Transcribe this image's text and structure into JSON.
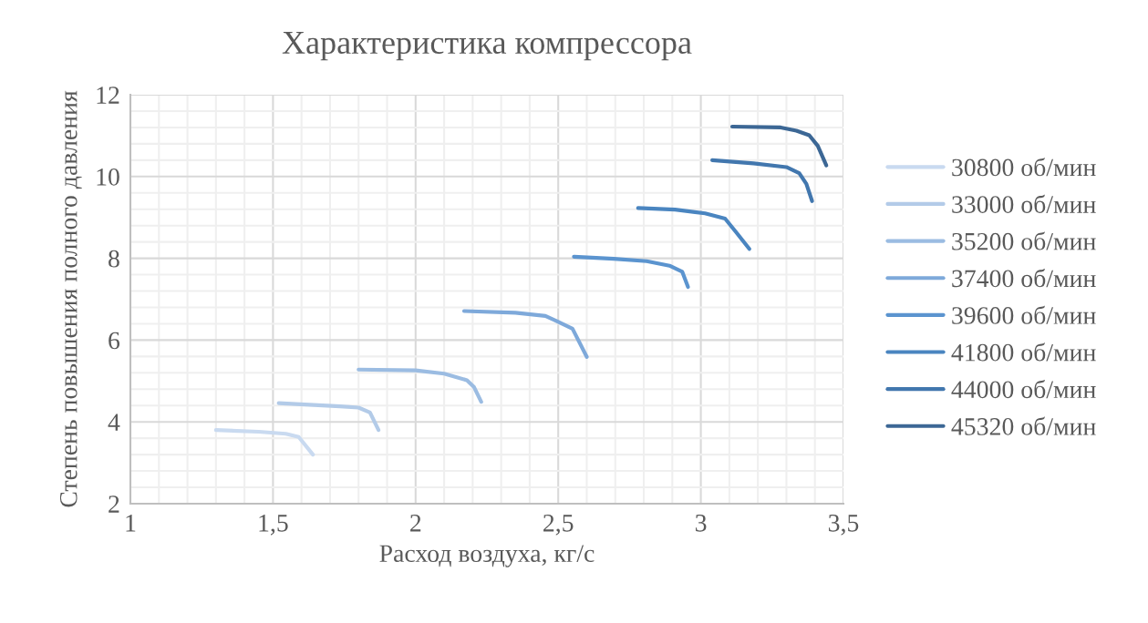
{
  "chart_data": {
    "type": "line",
    "title": "Характеристика компрессора",
    "xlabel": "Расход воздуха, кг/с",
    "ylabel": "Степень повышения полного давления",
    "xlim": [
      1,
      3.5
    ],
    "xticks": [
      1,
      {
        "value": 1.5,
        "label": "1,5"
      },
      2,
      {
        "value": 2.5,
        "label": "2,5"
      },
      3,
      {
        "value": 3.5,
        "label": "3,5"
      }
    ],
    "ylim": [
      2,
      12
    ],
    "yticks": [
      2,
      4,
      6,
      8,
      10,
      12
    ],
    "grid": true,
    "legend": "right",
    "marker": "none",
    "line_style": "solid",
    "series": [
      {
        "name": "30800 об/мин",
        "color": "#c9daf0",
        "x": [
          1.3,
          1.45,
          1.545,
          1.59,
          1.64
        ],
        "values": [
          3.8,
          3.76,
          3.71,
          3.63,
          3.2
        ]
      },
      {
        "name": "33000 об/мин",
        "color": "#b3cbe8",
        "x": [
          1.52,
          1.735,
          1.8,
          1.84,
          1.87
        ],
        "values": [
          4.46,
          4.38,
          4.35,
          4.23,
          3.8
        ]
      },
      {
        "name": "35200 об/мин",
        "color": "#9bbce2",
        "x": [
          1.8,
          2.0,
          2.1,
          2.18,
          2.205,
          2.23
        ],
        "values": [
          5.28,
          5.26,
          5.18,
          5.02,
          4.85,
          4.49
        ]
      },
      {
        "name": "37400 об/мин",
        "color": "#7ea9da",
        "x": [
          2.17,
          2.35,
          2.455,
          2.49,
          2.55,
          2.6
        ],
        "values": [
          6.71,
          6.67,
          6.59,
          6.48,
          6.28,
          5.59
        ]
      },
      {
        "name": "39600 об/мин",
        "color": "#5b94cf",
        "x": [
          2.555,
          2.695,
          2.81,
          2.89,
          2.935,
          2.955
        ],
        "values": [
          8.04,
          7.99,
          7.93,
          7.82,
          7.67,
          7.3
        ]
      },
      {
        "name": "41800 об/мин",
        "color": "#4a85c0",
        "x": [
          2.78,
          2.91,
          3.015,
          3.085,
          3.12,
          3.17
        ],
        "values": [
          9.23,
          9.19,
          9.1,
          8.97,
          8.67,
          8.23
        ]
      },
      {
        "name": "44000 об/мин",
        "color": "#4277ae",
        "x": [
          3.04,
          3.185,
          3.3,
          3.345,
          3.37,
          3.39
        ],
        "values": [
          10.4,
          10.32,
          10.23,
          10.08,
          9.82,
          9.4
        ]
      },
      {
        "name": "45320 об/мин",
        "color": "#3c6795",
        "x": [
          3.11,
          3.28,
          3.335,
          3.38,
          3.41,
          3.44
        ],
        "values": [
          11.22,
          11.2,
          11.12,
          11.01,
          10.75,
          10.27
        ]
      }
    ]
  }
}
